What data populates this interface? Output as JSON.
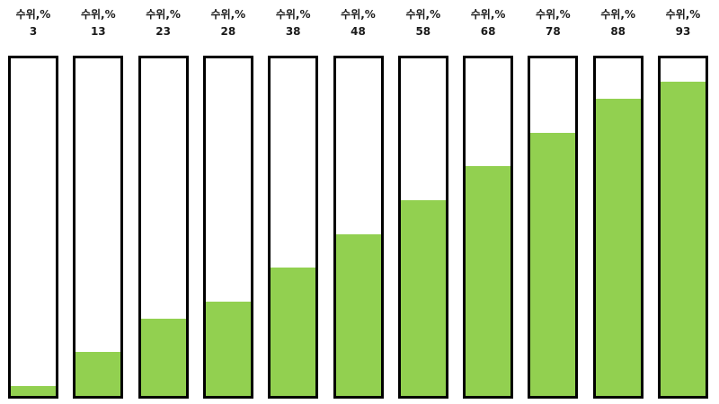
{
  "fill_color": "#92d050",
  "border_color": "#000000",
  "gauges": [
    {
      "title": "수위,%",
      "value": "3",
      "level_percent": 3
    },
    {
      "title": "수위,%",
      "value": "13",
      "level_percent": 13
    },
    {
      "title": "수위,%",
      "value": "23",
      "level_percent": 23
    },
    {
      "title": "수위,%",
      "value": "28",
      "level_percent": 28
    },
    {
      "title": "수위,%",
      "value": "38",
      "level_percent": 38
    },
    {
      "title": "수위,%",
      "value": "48",
      "level_percent": 48
    },
    {
      "title": "수위,%",
      "value": "58",
      "level_percent": 58
    },
    {
      "title": "수위,%",
      "value": "68",
      "level_percent": 68
    },
    {
      "title": "수위,%",
      "value": "78",
      "level_percent": 78
    },
    {
      "title": "수위,%",
      "value": "88",
      "level_percent": 88
    },
    {
      "title": "수위,%",
      "value": "93",
      "level_percent": 93
    }
  ]
}
